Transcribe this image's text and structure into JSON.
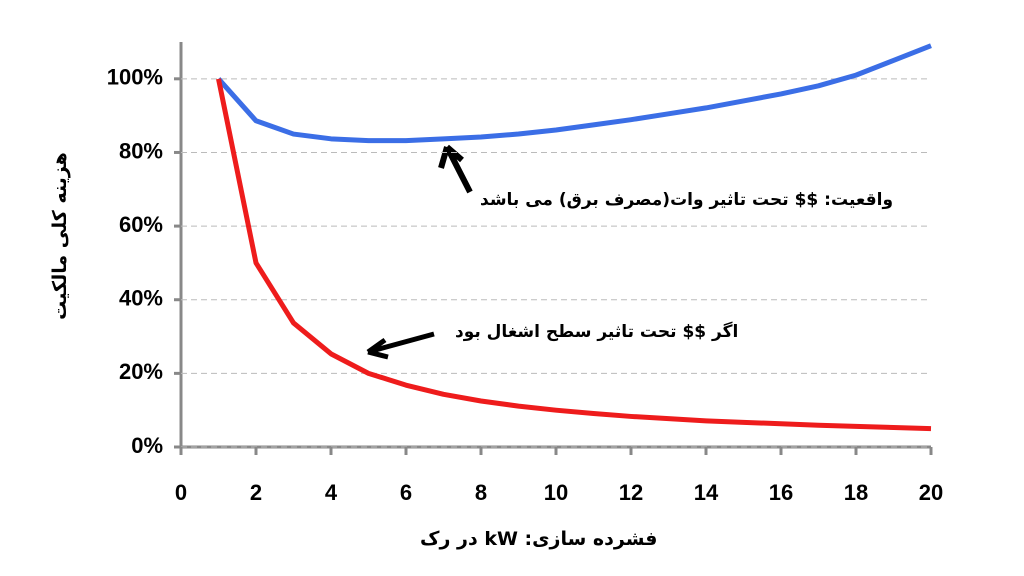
{
  "chart_data": {
    "type": "line",
    "x_label": "فشرده سازی: kW در رک",
    "y_label": "هزینه کلی مالکیت",
    "annotations": [
      "واقعیت: $$ تحت تاثیر وات(مصرف برق) می باشد",
      "اگر $$ تحت تاثیر سطح اشغال بود"
    ],
    "x": [
      1,
      2,
      3,
      4,
      5,
      6,
      7,
      8,
      9,
      10,
      11,
      12,
      13,
      14,
      15,
      16,
      17,
      18,
      19,
      20
    ],
    "series": [
      {
        "color": "#3b6ee6",
        "values": [
          100,
          88.6,
          85,
          83.7,
          83.2,
          83.2,
          83.7,
          84.2,
          85,
          86.1,
          87.5,
          88.9,
          90.5,
          92.1,
          94,
          95.9,
          98.1,
          101,
          105,
          109
        ]
      },
      {
        "color": "#ee1c1c",
        "values": [
          100,
          50,
          33.7,
          25.3,
          20,
          16.8,
          14.3,
          12.5,
          11.1,
          10,
          9.1,
          8.3,
          7.7,
          7.1,
          6.7,
          6.3,
          5.9,
          5.6,
          5.3,
          5
        ]
      }
    ],
    "xlim": [
      0,
      20
    ],
    "xticks": [
      0,
      2,
      4,
      6,
      8,
      10,
      12,
      14,
      16,
      18,
      20
    ],
    "ylim": [
      0,
      110
    ],
    "yticks": [
      {
        "value": 0,
        "label": "0%"
      },
      {
        "value": 20,
        "label": "20%"
      },
      {
        "value": 40,
        "label": "40%"
      },
      {
        "value": 60,
        "label": "60%"
      },
      {
        "value": 80,
        "label": "80%"
      },
      {
        "value": 100,
        "label": "100%"
      }
    ],
    "grid": true
  }
}
